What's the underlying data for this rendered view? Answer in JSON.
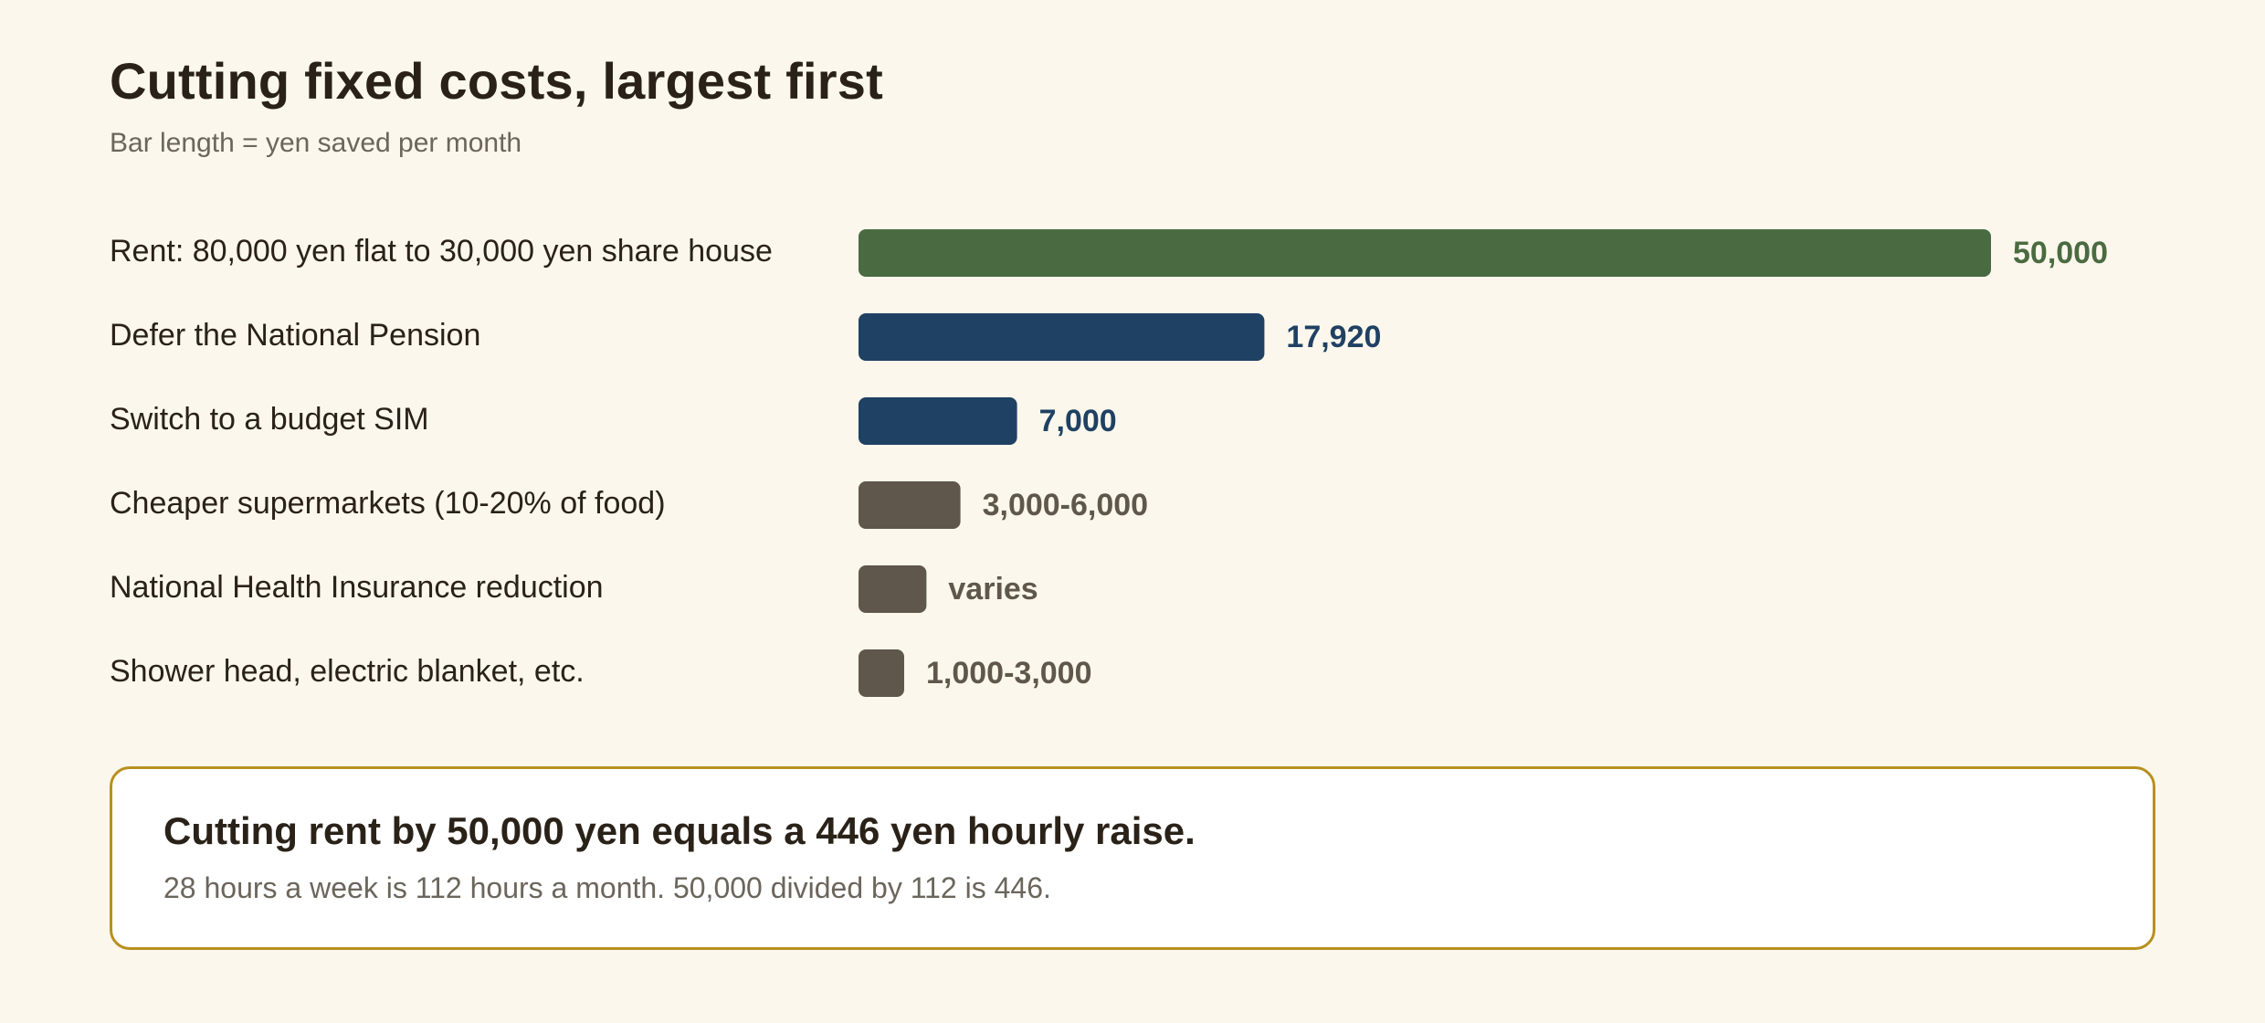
{
  "title": "Cutting fixed costs, largest first",
  "subtitle": "Bar length = yen saved per month",
  "colors": {
    "primary": "#4a6b41",
    "secondary": "#1f4163",
    "neutral": "#5f574c",
    "background": "#fbf7ec",
    "callout_border": "#b8901e"
  },
  "chart_data": {
    "type": "bar",
    "orientation": "horizontal",
    "title": "Cutting fixed costs, largest first",
    "subtitle": "Bar length = yen saved per month",
    "unit": "yen saved per month",
    "categories": [
      "Rent: 80,000 yen flat to 30,000 yen share house",
      "Defer the National Pension",
      "Switch to a budget SIM",
      "Cheaper supermarkets (10-20% of food)",
      "National Health Insurance reduction",
      "Shower head, electric blanket, etc."
    ],
    "values": [
      50000,
      17920,
      7000,
      4500,
      3000,
      2000
    ],
    "value_labels": [
      "50,000",
      "17,920",
      "7,000",
      "3,000-6,000",
      "varies",
      "1,000-3,000"
    ],
    "bar_colors": [
      "primary",
      "secondary",
      "secondary",
      "neutral",
      "neutral",
      "neutral"
    ],
    "xlim": [
      0,
      50000
    ],
    "grid": false,
    "legend": "none"
  },
  "callout": {
    "headline": "Cutting rent by 50,000 yen equals a 446 yen hourly raise.",
    "body": "28 hours a week is 112 hours a month. 50,000 divided by 112 is 446."
  }
}
